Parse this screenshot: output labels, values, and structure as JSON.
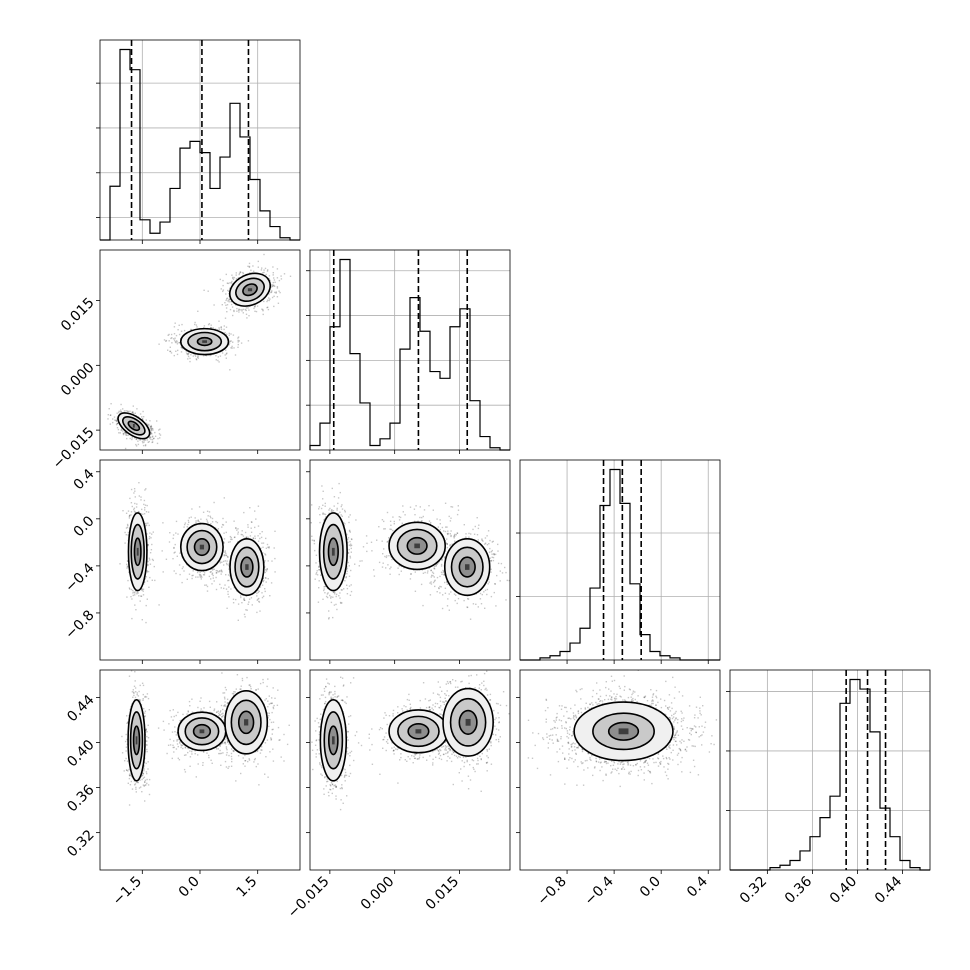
{
  "chart_data": {
    "type": "corner",
    "parameters": [
      {
        "id": "p0",
        "range": [
          -2.6,
          2.6
        ],
        "ticks": [
          -1.5,
          0.0,
          1.5
        ],
        "tick_labels": [
          "−1.5",
          "0.0",
          "1.5"
        ],
        "quantiles": [
          -1.78,
          0.05,
          1.26
        ]
      },
      {
        "id": "p1",
        "range": [
          -0.0196,
          0.0267
        ],
        "ticks": [
          -0.015,
          0.0,
          0.015
        ],
        "tick_labels": [
          "−0.015",
          "0.000",
          "0.015"
        ],
        "quantiles": [
          -0.0141,
          0.0055,
          0.0168
        ]
      },
      {
        "id": "p2",
        "range": [
          -1.2,
          0.5
        ],
        "ticks": [
          -0.8,
          -0.4,
          0.0,
          0.4
        ],
        "tick_labels": [
          "−0.8",
          "−0.4",
          "0.0",
          "0.4"
        ],
        "quantiles": [
          -0.49,
          -0.33,
          -0.17
        ]
      },
      {
        "id": "p3",
        "range": [
          0.2868,
          0.4645
        ],
        "ticks": [
          0.32,
          0.36,
          0.4,
          0.44
        ],
        "tick_labels": [
          "0.32",
          "0.36",
          "0.40",
          "0.44"
        ],
        "quantiles": [
          0.39,
          0.409,
          0.425
        ]
      }
    ],
    "histograms": [
      {
        "param": 0,
        "counts": [
          0.0,
          0.24,
          0.85,
          0.76,
          0.09,
          0.03,
          0.08,
          0.23,
          0.41,
          0.44,
          0.39,
          0.23,
          0.37,
          0.61,
          0.46,
          0.27,
          0.13,
          0.06,
          0.01,
          0.0
        ]
      },
      {
        "param": 1,
        "counts": [
          0.02,
          0.12,
          0.55,
          0.85,
          0.43,
          0.21,
          0.02,
          0.05,
          0.12,
          0.45,
          0.68,
          0.53,
          0.35,
          0.32,
          0.55,
          0.63,
          0.22,
          0.06,
          0.01,
          0.0
        ]
      },
      {
        "param": 2,
        "counts": [
          0.0,
          0.0,
          0.01,
          0.02,
          0.04,
          0.08,
          0.15,
          0.34,
          0.73,
          0.9,
          0.74,
          0.36,
          0.12,
          0.04,
          0.02,
          0.01,
          0.0,
          0.0,
          0.0,
          0.0
        ]
      },
      {
        "param": 3,
        "counts": [
          0.0,
          0.0,
          0.0,
          0.0,
          0.01,
          0.02,
          0.04,
          0.08,
          0.14,
          0.22,
          0.31,
          0.7,
          0.8,
          0.76,
          0.58,
          0.26,
          0.14,
          0.04,
          0.01,
          0.0
        ]
      }
    ],
    "histogram_yticks": [
      [
        0.1,
        0.3,
        0.5,
        0.7
      ],
      [
        0.2,
        0.4,
        0.6,
        0.8
      ],
      [
        0.3,
        0.6
      ],
      [
        0.25,
        0.5,
        0.75
      ]
    ],
    "panels_2d": [
      {
        "row": 1,
        "col": 0,
        "contours": [
          {
            "cx": -1.72,
            "cy": -0.014,
            "rx": 0.24,
            "ry": 0.0042,
            "angle": -55,
            "levels": [
              0.35,
              0.7,
              1.0
            ]
          },
          {
            "cx": 0.12,
            "cy": 0.0055,
            "rx": 0.62,
            "ry": 0.003,
            "angle": 0,
            "levels": [
              0.3,
              0.7,
              1.0
            ]
          },
          {
            "cx": 1.3,
            "cy": 0.0175,
            "rx": 0.55,
            "ry": 0.0035,
            "angle": -25,
            "levels": [
              0.35,
              0.7,
              1.0
            ]
          }
        ]
      },
      {
        "row": 2,
        "col": 0,
        "contours": [
          {
            "cx": -1.62,
            "cy": -0.28,
            "rx": 0.24,
            "ry": 0.33,
            "angle": 0,
            "levels": [
              0.35,
              0.7,
              1.0
            ]
          },
          {
            "cx": 0.05,
            "cy": -0.24,
            "rx": 0.55,
            "ry": 0.2,
            "angle": 0,
            "levels": [
              0.35,
              0.7,
              1.0
            ]
          },
          {
            "cx": 1.22,
            "cy": -0.41,
            "rx": 0.44,
            "ry": 0.24,
            "angle": 0,
            "levels": [
              0.35,
              0.7,
              1.0
            ]
          }
        ]
      },
      {
        "row": 2,
        "col": 1,
        "contours": [
          {
            "cx": -0.0142,
            "cy": -0.28,
            "rx": 0.0032,
            "ry": 0.33,
            "angle": 0,
            "levels": [
              0.35,
              0.7,
              1.0
            ]
          },
          {
            "cx": 0.0052,
            "cy": -0.23,
            "rx": 0.0065,
            "ry": 0.2,
            "angle": 0,
            "levels": [
              0.35,
              0.7,
              1.0
            ]
          },
          {
            "cx": 0.0168,
            "cy": -0.41,
            "rx": 0.0052,
            "ry": 0.24,
            "angle": 0,
            "levels": [
              0.35,
              0.7,
              1.0
            ]
          }
        ]
      },
      {
        "row": 3,
        "col": 0,
        "contours": [
          {
            "cx": -1.65,
            "cy": 0.402,
            "rx": 0.22,
            "ry": 0.036,
            "angle": 0,
            "levels": [
              0.35,
              0.7,
              1.0
            ]
          },
          {
            "cx": 0.05,
            "cy": 0.41,
            "rx": 0.62,
            "ry": 0.017,
            "angle": 0,
            "levels": [
              0.35,
              0.7,
              1.0
            ]
          },
          {
            "cx": 1.2,
            "cy": 0.418,
            "rx": 0.55,
            "ry": 0.028,
            "angle": 0,
            "levels": [
              0.35,
              0.7,
              1.0
            ]
          }
        ]
      },
      {
        "row": 3,
        "col": 1,
        "contours": [
          {
            "cx": -0.0142,
            "cy": 0.402,
            "rx": 0.003,
            "ry": 0.036,
            "angle": 0,
            "levels": [
              0.35,
              0.7,
              1.0
            ]
          },
          {
            "cx": 0.0055,
            "cy": 0.41,
            "rx": 0.0068,
            "ry": 0.019,
            "angle": 0,
            "levels": [
              0.35,
              0.7,
              1.0
            ]
          },
          {
            "cx": 0.017,
            "cy": 0.418,
            "rx": 0.0058,
            "ry": 0.03,
            "angle": 0,
            "levels": [
              0.35,
              0.7,
              1.0
            ]
          }
        ]
      },
      {
        "row": 3,
        "col": 2,
        "contours": [
          {
            "cx": -0.32,
            "cy": 0.41,
            "rx": 0.42,
            "ry": 0.026,
            "angle": 0,
            "levels": [
              0.3,
              0.62,
              1.0
            ]
          }
        ]
      }
    ]
  }
}
